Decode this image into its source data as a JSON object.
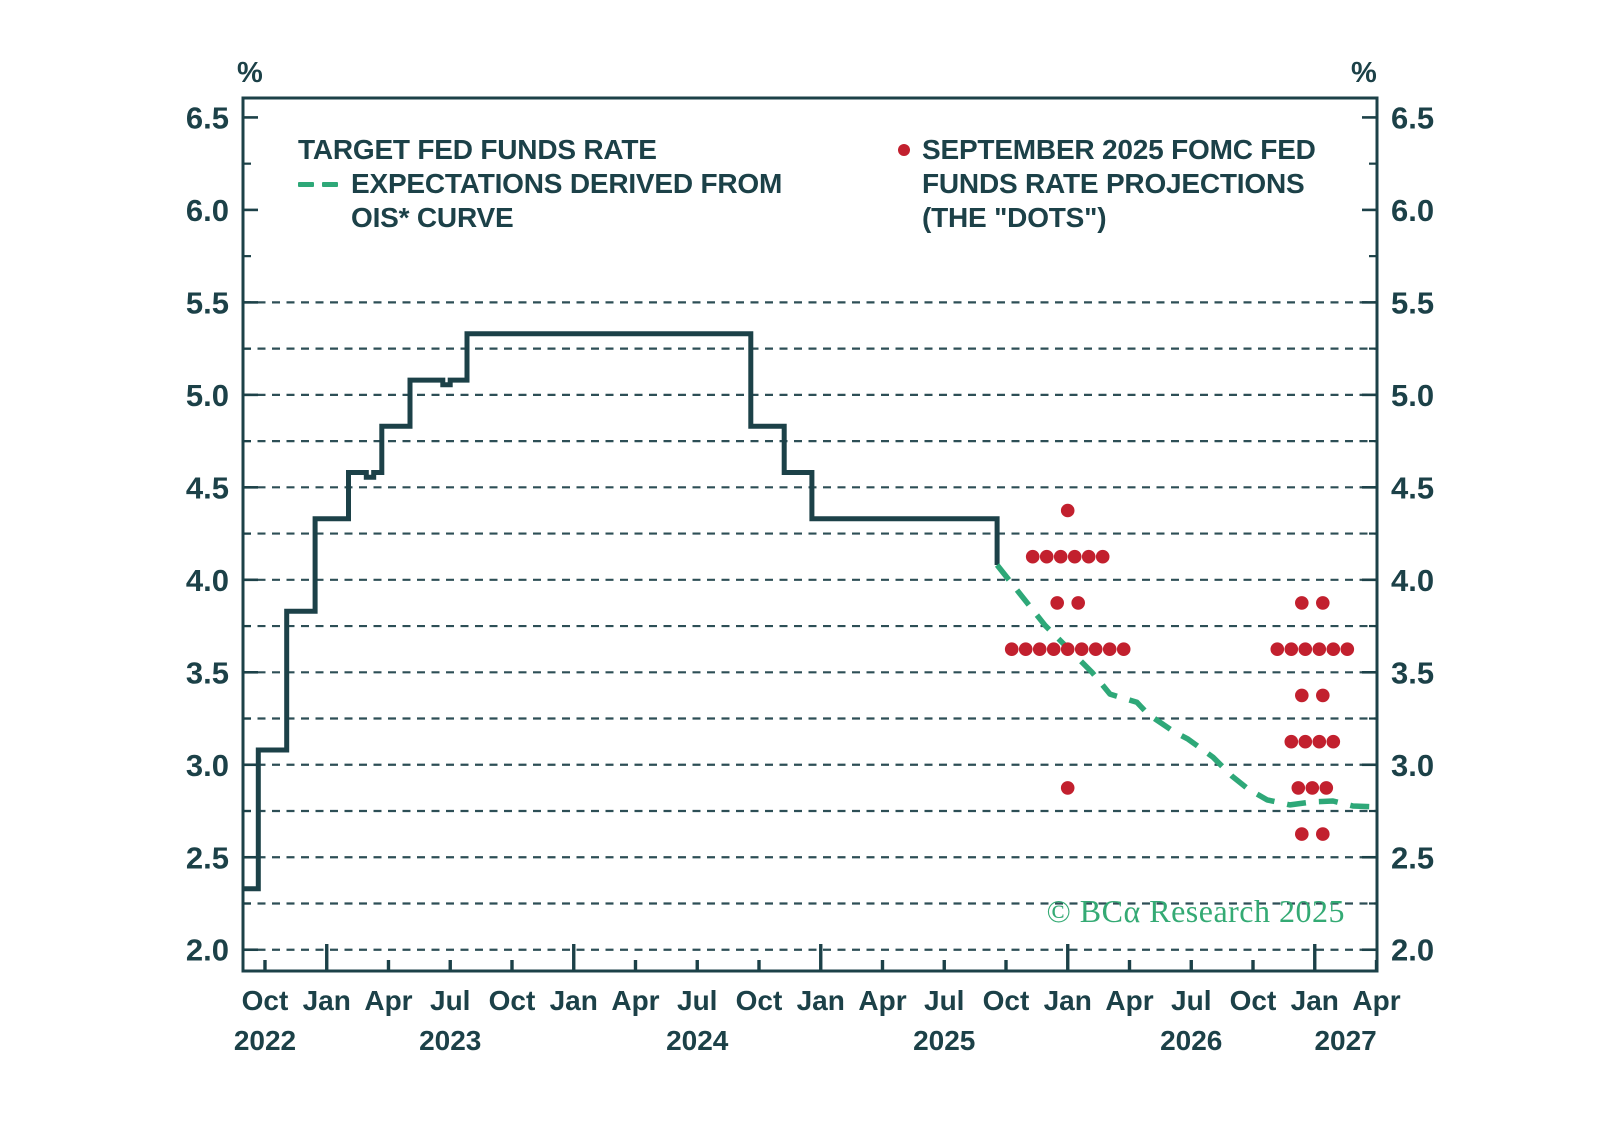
{
  "axes": {
    "percent_left": "%",
    "percent_right": "%"
  },
  "legend": {
    "target": {
      "line1": "TARGET FED FUNDS RATE",
      "line2": "EXPECTATIONS DERIVED FROM",
      "line3": "OIS* CURVE",
      "marker": "green-dashed-line"
    },
    "dots": {
      "line1": "SEPTEMBER 2025 FOMC FED",
      "line2": "FUNDS RATE PROJECTIONS",
      "line3": "(THE \"DOTS\")",
      "marker": "red-dot"
    }
  },
  "watermark": "© BCα Research 2025",
  "colors": {
    "ink": "#1c4148",
    "ois_green": "#2ea878",
    "dot_red": "#c2202e",
    "watermark_green": "#34aa74",
    "background": "#ffffff"
  },
  "chart_data": {
    "type": "line",
    "title": "",
    "ylabel_left": "%",
    "ylabel_right": "%",
    "x_domain_decimal_years": [
      2022.661,
      2027.252
    ],
    "y_domain": [
      1.885,
      6.605
    ],
    "grid": "dashed-horizontal",
    "legend_position": "top-inside",
    "y_ticks_major": [
      2.0,
      2.5,
      3.0,
      3.5,
      4.0,
      4.5,
      5.0,
      5.5,
      6.0,
      6.5
    ],
    "y_minor_ticks": [
      2.25,
      2.75,
      3.25,
      3.75,
      4.25,
      4.75,
      5.25,
      5.75,
      6.25
    ],
    "y_gridlines": [
      2.0,
      2.25,
      2.5,
      2.75,
      3.0,
      3.25,
      3.5,
      3.75,
      4.0,
      4.25,
      4.5,
      4.75,
      5.0,
      5.25,
      5.5
    ],
    "x_ticks": [
      {
        "t": 2022.75,
        "label": "Oct",
        "major": false
      },
      {
        "t": 2023.0,
        "label": "Jan",
        "major": true
      },
      {
        "t": 2023.25,
        "label": "Apr",
        "major": false
      },
      {
        "t": 2023.5,
        "label": "Jul",
        "major": false
      },
      {
        "t": 2023.75,
        "label": "Oct",
        "major": false
      },
      {
        "t": 2024.0,
        "label": "Jan",
        "major": true
      },
      {
        "t": 2024.25,
        "label": "Apr",
        "major": false
      },
      {
        "t": 2024.5,
        "label": "Jul",
        "major": false
      },
      {
        "t": 2024.75,
        "label": "Oct",
        "major": false
      },
      {
        "t": 2025.0,
        "label": "Jan",
        "major": true
      },
      {
        "t": 2025.25,
        "label": "Apr",
        "major": false
      },
      {
        "t": 2025.5,
        "label": "Jul",
        "major": false
      },
      {
        "t": 2025.75,
        "label": "Oct",
        "major": false
      },
      {
        "t": 2026.0,
        "label": "Jan",
        "major": true
      },
      {
        "t": 2026.25,
        "label": "Apr",
        "major": false
      },
      {
        "t": 2026.5,
        "label": "Jul",
        "major": false
      },
      {
        "t": 2026.75,
        "label": "Oct",
        "major": false
      },
      {
        "t": 2027.0,
        "label": "Jan",
        "major": true
      },
      {
        "t": 2027.25,
        "label": "Apr",
        "major": false
      }
    ],
    "x_year_labels": [
      {
        "t": 2022.75,
        "label": "2022"
      },
      {
        "t": 2023.5,
        "label": "2023"
      },
      {
        "t": 2024.5,
        "label": "2024"
      },
      {
        "t": 2025.5,
        "label": "2025"
      },
      {
        "t": 2026.5,
        "label": "2026"
      },
      {
        "t": 2027.125,
        "label": "2027"
      }
    ],
    "series": [
      {
        "name": "TARGET FED FUNDS RATE",
        "type": "step",
        "color_key": "ink",
        "points": [
          [
            2022.661,
            2.33
          ],
          [
            2022.723,
            3.08
          ],
          [
            2022.838,
            3.83
          ],
          [
            2022.953,
            4.33
          ],
          [
            2023.088,
            4.58
          ],
          [
            2023.16,
            4.555
          ],
          [
            2023.19,
            4.58
          ],
          [
            2023.223,
            4.83
          ],
          [
            2023.337,
            5.08
          ],
          [
            2023.47,
            5.055
          ],
          [
            2023.5,
            5.08
          ],
          [
            2023.568,
            5.33
          ],
          [
            2024.717,
            4.83
          ],
          [
            2024.852,
            4.58
          ],
          [
            2024.964,
            4.33
          ],
          [
            2025.714,
            4.08
          ]
        ]
      },
      {
        "name": "EXPECTATIONS DERIVED FROM OIS* CURVE",
        "type": "dashed_line",
        "color_key": "ois_green",
        "points": [
          [
            2025.714,
            4.08
          ],
          [
            2025.908,
            3.754
          ],
          [
            2026.098,
            3.5
          ],
          [
            2026.171,
            3.382
          ],
          [
            2026.28,
            3.338
          ],
          [
            2026.325,
            3.274
          ],
          [
            2026.426,
            3.182
          ],
          [
            2026.487,
            3.139
          ],
          [
            2026.588,
            3.041
          ],
          [
            2026.665,
            2.939
          ],
          [
            2026.73,
            2.869
          ],
          [
            2026.807,
            2.81
          ],
          [
            2026.9,
            2.783
          ],
          [
            2026.989,
            2.799
          ],
          [
            2027.074,
            2.804
          ],
          [
            2027.155,
            2.777
          ],
          [
            2027.244,
            2.772
          ]
        ]
      },
      {
        "name": "SEPTEMBER 2025 FOMC FED FUNDS RATE PROJECTIONS (THE \"DOTS\")",
        "type": "scatter",
        "color_key": "dot_red",
        "clusters": [
          {
            "projection_year_end": "2025",
            "center_t": 2026.0,
            "rows": [
              {
                "rate": 4.375,
                "count": 1
              },
              {
                "rate": 4.125,
                "count": 6
              },
              {
                "rate": 3.875,
                "count": 2
              },
              {
                "rate": 3.625,
                "count": 9
              },
              {
                "rate": 2.875,
                "count": 1
              }
            ]
          },
          {
            "projection_year_end": "2026",
            "center_t": 2026.99,
            "rows": [
              {
                "rate": 3.875,
                "count": 2
              },
              {
                "rate": 3.625,
                "count": 6
              },
              {
                "rate": 3.375,
                "count": 2
              },
              {
                "rate": 3.125,
                "count": 4
              },
              {
                "rate": 2.875,
                "count": 3
              },
              {
                "rate": 2.625,
                "count": 2
              }
            ]
          }
        ]
      }
    ]
  }
}
